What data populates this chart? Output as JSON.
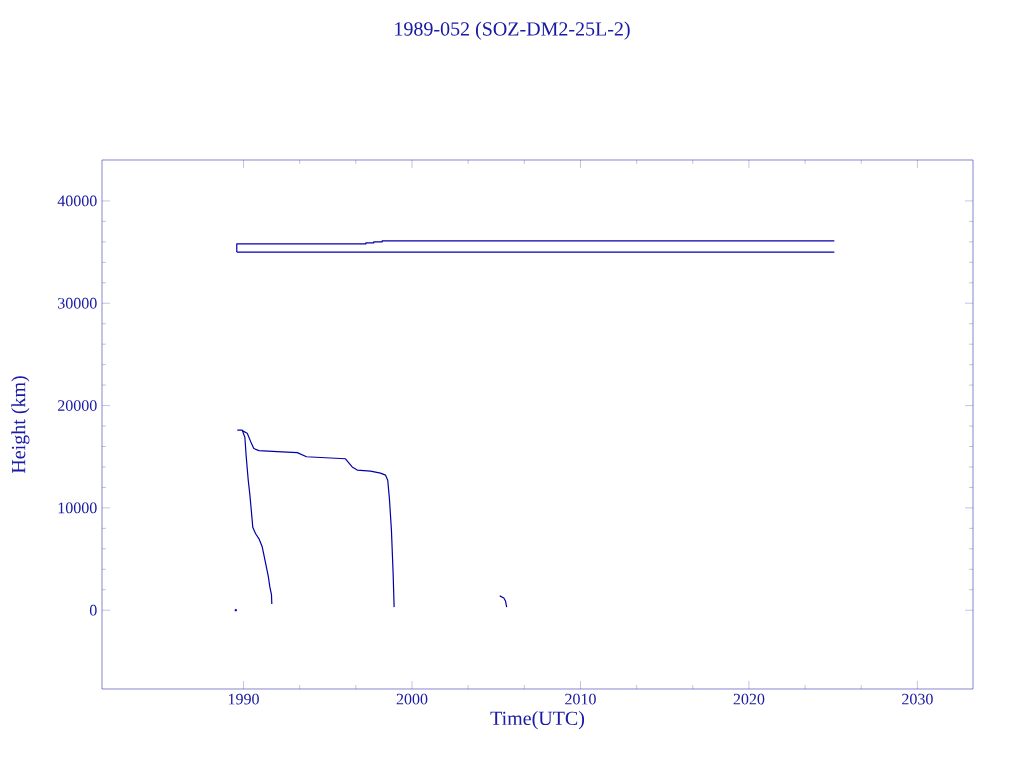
{
  "chart_data": {
    "type": "line",
    "title": "1989-052 (SOZ-DM2-25L-2)",
    "xlabel": "Time(UTC)",
    "ylabel": "Height (km)",
    "xlim": [
      1981.6,
      2033.3
    ],
    "ylim": [
      -7700,
      44000
    ],
    "xticks": [
      1990,
      2000,
      2010,
      2020,
      2030
    ],
    "yticks": [
      0,
      10000,
      20000,
      30000,
      40000
    ],
    "marker": "none",
    "line_style": "solid",
    "series": [
      {
        "color": "#0000aa",
        "x": [
          1989.6,
          1989.6,
          1997.26,
          1997.26,
          1997.73,
          1997.73,
          1998.23,
          1998.23,
          2025.07
        ],
        "values": [
          35000,
          35800,
          35800,
          35900,
          35900,
          36000,
          36000,
          36100,
          36100
        ]
      },
      {
        "color": "#0000aa",
        "x": [
          1989.6,
          2025.07
        ],
        "values": [
          35000,
          35000
        ]
      },
      {
        "color": "#0000aa",
        "x": [
          1989.63,
          1989.92,
          1990.08,
          1990.16,
          1990.28,
          1990.37,
          1990.46,
          1990.55,
          1990.71,
          1990.91,
          1991.11,
          1991.31,
          1991.47,
          1991.56,
          1991.66,
          1991.68
        ],
        "values": [
          17600,
          17600,
          16900,
          15000,
          12700,
          11400,
          9800,
          8100,
          7500,
          7000,
          6200,
          4600,
          3300,
          2300,
          1500,
          600
        ]
      },
      {
        "color": "#0000aa",
        "x": [
          1989.92,
          1989.98,
          1990.22,
          1990.42,
          1990.61,
          1990.91,
          1992.0,
          1993.19,
          1993.74,
          1994.87,
          1996.05,
          1996.45,
          1996.75,
          1997.54,
          1998.13,
          1998.43,
          1998.56,
          1998.66,
          1998.78,
          1998.88,
          1998.94
        ],
        "values": [
          17600,
          17500,
          17300,
          16500,
          15800,
          15600,
          15500,
          15400,
          15000,
          14900,
          14800,
          14000,
          13700,
          13600,
          13400,
          13200,
          12700,
          10900,
          7800,
          3600,
          300
        ]
      },
      {
        "color": "#0000aa",
        "x": [
          2005.21,
          2005.45,
          2005.55,
          2005.62
        ],
        "values": [
          1400,
          1200,
          900,
          300
        ]
      },
      {
        "type": "scatter",
        "marker": "square",
        "color": "#0000aa",
        "x": [
          1989.54
        ],
        "values": [
          0
        ]
      }
    ]
  }
}
